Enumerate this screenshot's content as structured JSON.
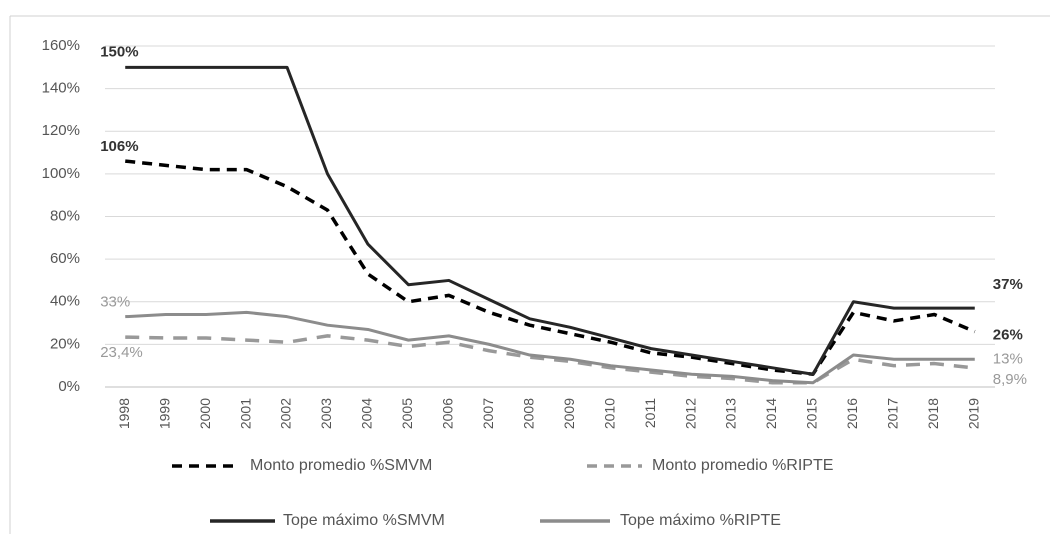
{
  "chart_data": {
    "type": "line",
    "categories": [
      "1998",
      "1999",
      "2000",
      "2001",
      "2002",
      "2003",
      "2004",
      "2005",
      "2006",
      "2007",
      "2008",
      "2009",
      "2010",
      "2011",
      "2012",
      "2013",
      "2014",
      "2015",
      "2016",
      "2017",
      "2018",
      "2019"
    ],
    "ylim": [
      0,
      160
    ],
    "yticks": [
      {
        "value": 0,
        "label": "0%"
      },
      {
        "value": 20,
        "label": "20%"
      },
      {
        "value": 40,
        "label": "40%"
      },
      {
        "value": 60,
        "label": "60%"
      },
      {
        "value": 80,
        "label": "80%"
      },
      {
        "value": 100,
        "label": "100%"
      },
      {
        "value": 120,
        "label": "120%"
      },
      {
        "value": 140,
        "label": "140%"
      },
      {
        "value": 160,
        "label": "160%"
      }
    ],
    "grid": true,
    "series": [
      {
        "name": "Monto promedio %SMVM",
        "color": "#000000",
        "line_style": "dashed",
        "values": [
          106,
          104,
          102,
          102,
          94,
          83,
          53,
          40,
          43,
          35,
          29,
          25,
          21,
          16,
          14,
          11,
          8,
          6,
          35,
          31,
          34,
          26
        ],
        "value_labels": [
          "106%",
          null,
          null,
          null,
          null,
          null,
          null,
          null,
          null,
          null,
          null,
          null,
          null,
          null,
          null,
          null,
          null,
          null,
          null,
          null,
          null,
          "26%"
        ]
      },
      {
        "name": "Monto promedio %RIPTE",
        "color": "#999999",
        "line_style": "dashed",
        "values": [
          23.4,
          23,
          23,
          22,
          21,
          24,
          22,
          19,
          21,
          17,
          14,
          12,
          9,
          7,
          5,
          4,
          2,
          2,
          13,
          10,
          11,
          8.9
        ],
        "value_labels": [
          "23,4%",
          null,
          null,
          null,
          null,
          null,
          null,
          null,
          null,
          null,
          null,
          null,
          null,
          null,
          null,
          null,
          null,
          null,
          null,
          null,
          null,
          "8,9%"
        ]
      },
      {
        "name": "Tope máximo %SMVM",
        "color": "#262626",
        "line_style": "solid",
        "values": [
          150,
          150,
          150,
          150,
          150,
          100,
          67,
          48,
          50,
          41,
          32,
          28,
          23,
          18,
          15,
          12,
          9,
          6,
          40,
          37,
          37,
          37
        ],
        "value_labels": [
          "150%",
          null,
          null,
          null,
          null,
          null,
          null,
          null,
          null,
          null,
          null,
          null,
          null,
          null,
          null,
          null,
          null,
          null,
          null,
          null,
          null,
          "37%"
        ]
      },
      {
        "name": "Tope máximo %RIPTE",
        "color": "#8c8c8c",
        "line_style": "solid",
        "values": [
          33,
          34,
          34,
          35,
          33,
          29,
          27,
          22,
          24,
          20,
          15,
          13,
          10,
          8,
          6,
          5,
          3,
          2,
          15,
          13,
          13,
          13
        ],
        "value_labels": [
          "33%",
          null,
          null,
          null,
          null,
          null,
          null,
          null,
          null,
          null,
          null,
          null,
          null,
          null,
          null,
          null,
          null,
          null,
          null,
          null,
          null,
          "13%"
        ]
      }
    ]
  }
}
